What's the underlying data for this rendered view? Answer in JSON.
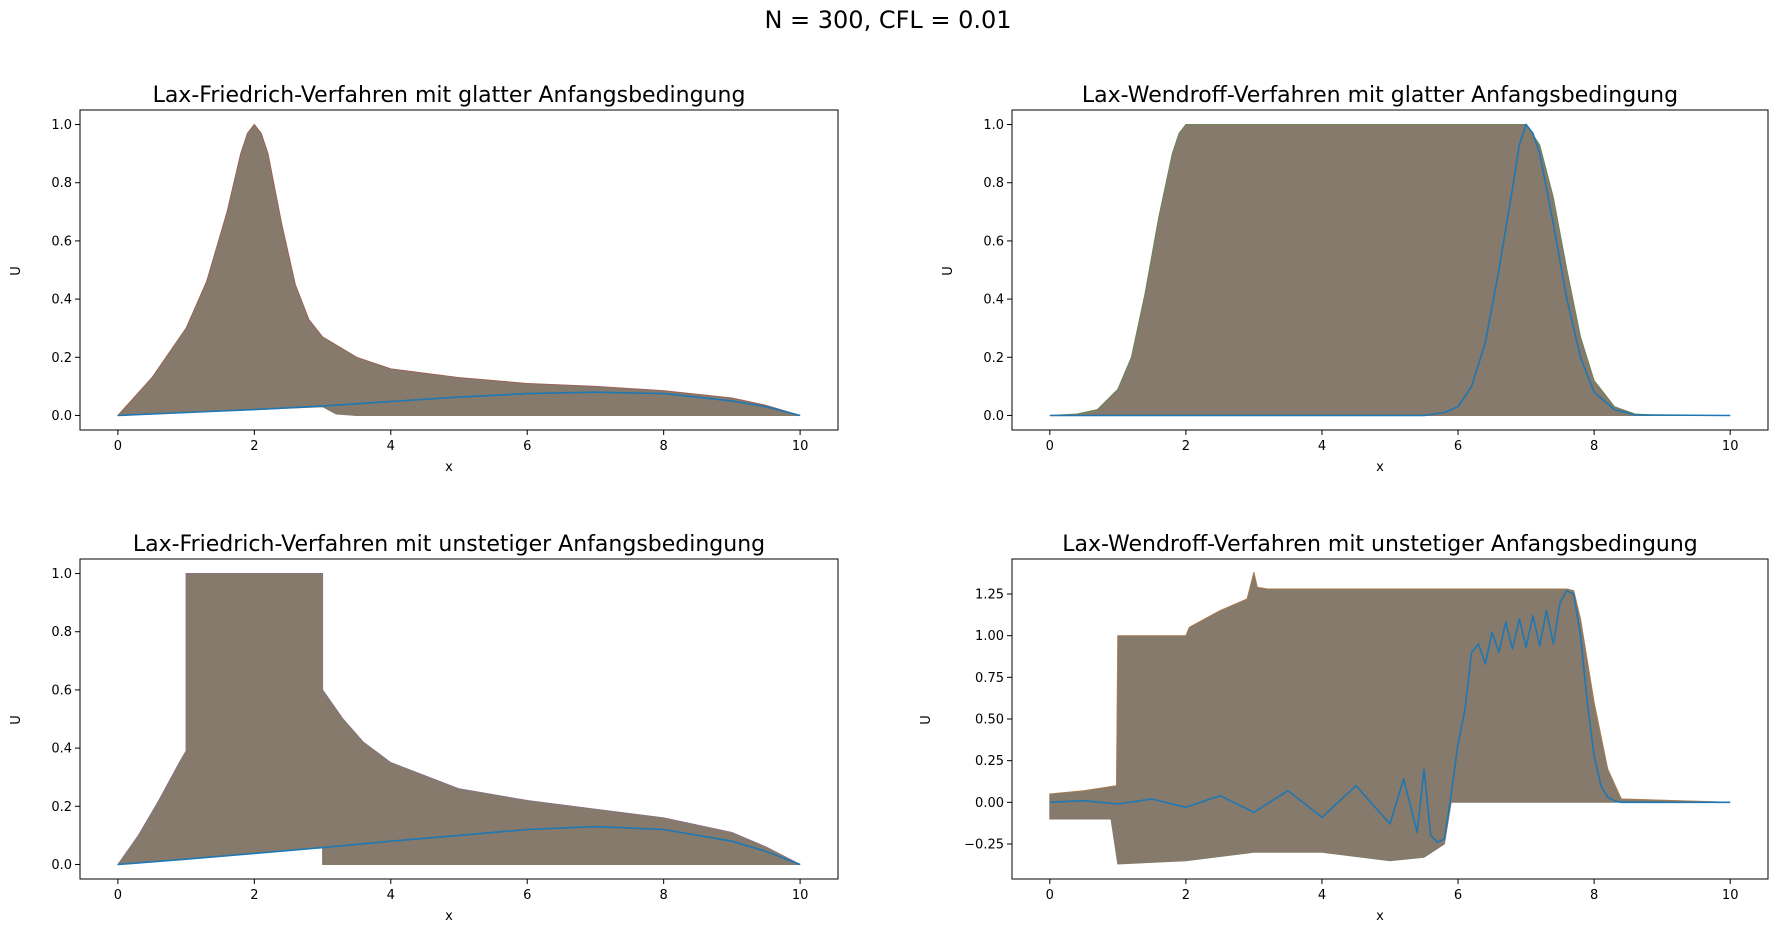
{
  "suptitle": "N = 300, CFL = 0.01",
  "colors": {
    "band": "#857a6b",
    "final_line": "#1f77b4",
    "accent_fringe": [
      "#d62728",
      "#2ca02c",
      "#9467bd",
      "#ff7f0e"
    ]
  },
  "chart_data": [
    {
      "type": "line",
      "title": "Lax-Friedrich-Verfahren mit glatter Anfangsbedingung",
      "xlabel": "x",
      "ylabel": "U",
      "xlim": [
        0,
        10
      ],
      "ylim": [
        -0.05,
        1.05
      ],
      "xticks": [
        "0",
        "2",
        "4",
        "6",
        "8",
        "10"
      ],
      "yticks": [
        "0.0",
        "0.2",
        "0.4",
        "0.6",
        "0.8",
        "1.0"
      ],
      "grid": false,
      "band_upper": {
        "x": [
          0,
          0.5,
          1.0,
          1.3,
          1.6,
          1.8,
          1.9,
          2.0,
          2.1,
          2.2,
          2.4,
          2.6,
          2.8,
          3.0,
          3.5,
          4.0,
          5.0,
          6.0,
          7.0,
          8.0,
          9.0,
          9.5,
          10
        ],
        "y": [
          0,
          0.13,
          0.3,
          0.46,
          0.7,
          0.9,
          0.97,
          1.0,
          0.97,
          0.9,
          0.66,
          0.45,
          0.33,
          0.27,
          0.2,
          0.16,
          0.13,
          0.11,
          0.1,
          0.085,
          0.06,
          0.035,
          0
        ]
      },
      "band_lower": {
        "x": [
          0,
          1.0,
          2.0,
          3.0,
          3.2,
          3.5,
          4.0,
          5.0,
          6.0,
          7.0,
          8.0,
          9.0,
          10
        ],
        "y": [
          0,
          0.01,
          0.02,
          0.03,
          0.005,
          0,
          0,
          0,
          0,
          0,
          0,
          0,
          0
        ]
      },
      "final": {
        "x": [
          0,
          1,
          2,
          3,
          4,
          5,
          6,
          7,
          8,
          9,
          9.5,
          10
        ],
        "y": [
          0,
          0.01,
          0.02,
          0.032,
          0.048,
          0.063,
          0.075,
          0.08,
          0.075,
          0.05,
          0.03,
          0
        ]
      }
    },
    {
      "type": "line",
      "title": "Lax-Wendroff-Verfahren mit glatter Anfangsbedingung",
      "xlabel": "x",
      "ylabel": "U",
      "xlim": [
        0,
        10
      ],
      "ylim": [
        -0.05,
        1.05
      ],
      "xticks": [
        "0",
        "2",
        "4",
        "6",
        "8",
        "10"
      ],
      "yticks": [
        "0.0",
        "0.2",
        "0.4",
        "0.6",
        "0.8",
        "1.0"
      ],
      "grid": false,
      "band_upper": {
        "x": [
          0,
          0.4,
          0.7,
          1.0,
          1.2,
          1.4,
          1.6,
          1.8,
          1.9,
          2.0,
          7.0,
          7.2,
          7.4,
          7.6,
          7.8,
          8.0,
          8.3,
          8.6,
          9.0,
          10
        ],
        "y": [
          0,
          0.005,
          0.02,
          0.09,
          0.2,
          0.42,
          0.68,
          0.9,
          0.97,
          1.0,
          1.0,
          0.93,
          0.75,
          0.5,
          0.27,
          0.12,
          0.03,
          0.005,
          0,
          0
        ]
      },
      "band_lower": {
        "x": [
          0,
          10
        ],
        "y": [
          0,
          0
        ]
      },
      "final": {
        "x": [
          0,
          5.5,
          5.8,
          6.0,
          6.2,
          6.4,
          6.6,
          6.8,
          6.9,
          7.0,
          7.1,
          7.2,
          7.4,
          7.6,
          7.8,
          8.0,
          8.3,
          8.6,
          10
        ],
        "y": [
          0,
          0,
          0.01,
          0.03,
          0.1,
          0.25,
          0.5,
          0.78,
          0.93,
          1.0,
          0.97,
          0.9,
          0.66,
          0.4,
          0.2,
          0.08,
          0.02,
          0.002,
          0
        ]
      }
    },
    {
      "type": "line",
      "title": "Lax-Friedrich-Verfahren mit unstetiger Anfangsbedingung",
      "xlabel": "x",
      "ylabel": "U",
      "xlim": [
        0,
        10
      ],
      "ylim": [
        -0.05,
        1.05
      ],
      "xticks": [
        "0",
        "2",
        "4",
        "6",
        "8",
        "10"
      ],
      "yticks": [
        "0.0",
        "0.2",
        "0.4",
        "0.6",
        "0.8",
        "1.0"
      ],
      "grid": false,
      "band_upper": {
        "x": [
          0,
          0.3,
          0.6,
          0.9,
          1.0,
          1.0,
          3.0,
          3.0,
          3.3,
          3.6,
          4.0,
          5.0,
          6.0,
          7.0,
          8.0,
          9.0,
          9.5,
          10
        ],
        "y": [
          0,
          0.1,
          0.22,
          0.35,
          0.39,
          1.0,
          1.0,
          0.6,
          0.5,
          0.42,
          0.35,
          0.26,
          0.22,
          0.19,
          0.16,
          0.11,
          0.06,
          0
        ]
      },
      "band_lower": {
        "x": [
          0,
          1.0,
          2.0,
          3.0,
          3.0,
          4.0,
          6.0,
          8.0,
          10
        ],
        "y": [
          0,
          0.02,
          0.04,
          0.06,
          0,
          0,
          0,
          0,
          0
        ]
      },
      "final": {
        "x": [
          0,
          1,
          2,
          3,
          4,
          5,
          6,
          7,
          8,
          9,
          9.5,
          10
        ],
        "y": [
          0,
          0.018,
          0.038,
          0.058,
          0.08,
          0.1,
          0.12,
          0.13,
          0.12,
          0.08,
          0.045,
          0
        ]
      }
    },
    {
      "type": "line",
      "title": "Lax-Wendroff-Verfahren mit unstetiger Anfangsbedingung",
      "xlabel": "x",
      "ylabel": "U",
      "xlim": [
        0,
        10
      ],
      "ylim": [
        -0.46,
        1.46
      ],
      "xticks": [
        "0",
        "2",
        "4",
        "6",
        "8",
        "10"
      ],
      "yticks": [
        "−0.25",
        "0.00",
        "0.25",
        "0.50",
        "0.75",
        "1.00",
        "1.25"
      ],
      "ytick_values": [
        -0.25,
        0,
        0.25,
        0.5,
        0.75,
        1.0,
        1.25
      ],
      "grid": false,
      "band_upper": {
        "x": [
          0,
          0.5,
          0.98,
          1.0,
          2.0,
          2.05,
          2.5,
          2.9,
          3.0,
          3.05,
          3.2,
          7.6,
          7.7,
          7.8,
          8.0,
          8.2,
          8.4,
          10
        ],
        "y": [
          0.05,
          0.07,
          0.1,
          1.0,
          1.0,
          1.05,
          1.15,
          1.22,
          1.38,
          1.29,
          1.28,
          1.28,
          1.27,
          1.1,
          0.6,
          0.2,
          0.02,
          0
        ]
      },
      "band_lower": {
        "x": [
          0,
          0.9,
          1.0,
          2.0,
          3.0,
          4.0,
          5.0,
          5.5,
          5.8,
          5.9,
          6.0,
          10
        ],
        "y": [
          -0.1,
          -0.1,
          -0.37,
          -0.35,
          -0.3,
          -0.3,
          -0.35,
          -0.33,
          -0.25,
          0,
          0,
          0
        ]
      },
      "final": {
        "x": [
          0,
          0.5,
          1.0,
          1.5,
          2.0,
          2.5,
          3.0,
          3.5,
          4.0,
          4.5,
          5.0,
          5.2,
          5.4,
          5.5,
          5.6,
          5.7,
          5.8,
          5.9,
          6.0,
          6.1,
          6.2,
          6.3,
          6.4,
          6.5,
          6.6,
          6.7,
          6.8,
          6.9,
          7.0,
          7.1,
          7.2,
          7.3,
          7.4,
          7.5,
          7.6,
          7.7,
          7.8,
          7.9,
          8.0,
          8.1,
          8.2,
          8.3,
          8.4,
          8.6,
          10
        ],
        "y": [
          0,
          0.01,
          -0.01,
          0.02,
          -0.03,
          0.04,
          -0.06,
          0.07,
          -0.09,
          0.1,
          -0.13,
          0.14,
          -0.18,
          0.2,
          -0.2,
          -0.24,
          -0.22,
          0.05,
          0.35,
          0.55,
          0.9,
          0.95,
          0.83,
          1.02,
          0.9,
          1.08,
          0.92,
          1.1,
          0.93,
          1.12,
          0.94,
          1.15,
          0.95,
          1.2,
          1.27,
          1.25,
          1.0,
          0.6,
          0.28,
          0.1,
          0.03,
          0.01,
          0,
          0,
          0
        ]
      }
    }
  ]
}
